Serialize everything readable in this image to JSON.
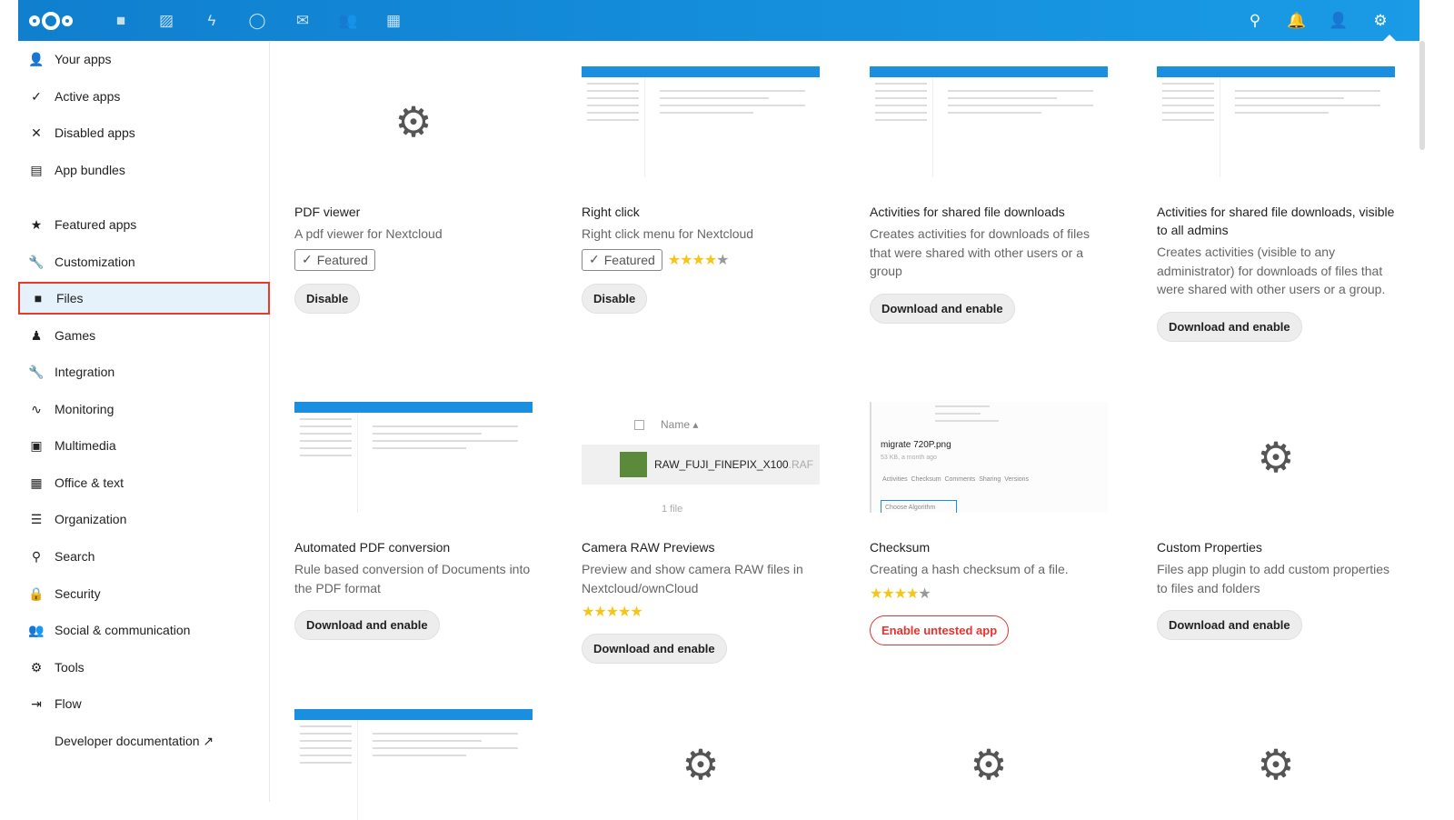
{
  "header": {
    "nav_icons": [
      "files-icon",
      "photos-icon",
      "activity-icon",
      "search-talk-icon",
      "mail-icon",
      "contacts-icon",
      "calendar-icon"
    ],
    "right_icons": [
      "search-icon",
      "notifications-icon",
      "contacts-menu-icon",
      "settings-icon"
    ],
    "color": "#0f7fce"
  },
  "sidebar": {
    "items": [
      {
        "label": "Your apps",
        "icon": "user-icon",
        "glyph": "👤"
      },
      {
        "label": "Active apps",
        "icon": "check-icon",
        "glyph": "✓"
      },
      {
        "label": "Disabled apps",
        "icon": "close-icon",
        "glyph": "✕"
      },
      {
        "label": "App bundles",
        "icon": "archive-icon",
        "glyph": "▤"
      },
      {
        "label": "Featured apps",
        "icon": "star-icon",
        "glyph": "★"
      },
      {
        "label": "Customization",
        "icon": "wrench-icon",
        "glyph": "🔧"
      },
      {
        "label": "Files",
        "icon": "folder-icon",
        "glyph": "■"
      },
      {
        "label": "Games",
        "icon": "games-icon",
        "glyph": "♟"
      },
      {
        "label": "Integration",
        "icon": "wrench-icon",
        "glyph": "🔧"
      },
      {
        "label": "Monitoring",
        "icon": "pulse-icon",
        "glyph": "∿"
      },
      {
        "label": "Multimedia",
        "icon": "image-icon",
        "glyph": "▣"
      },
      {
        "label": "Office & text",
        "icon": "document-icon",
        "glyph": "▦"
      },
      {
        "label": "Organization",
        "icon": "list-icon",
        "glyph": "☰"
      },
      {
        "label": "Search",
        "icon": "search-icon",
        "glyph": "⚲"
      },
      {
        "label": "Security",
        "icon": "lock-icon",
        "glyph": "🔒"
      },
      {
        "label": "Social & communication",
        "icon": "users-icon",
        "glyph": "👥"
      },
      {
        "label": "Tools",
        "icon": "gear-icon",
        "glyph": "⚙"
      },
      {
        "label": "Flow",
        "icon": "flow-icon",
        "glyph": "⇥"
      },
      {
        "label": "Developer documentation ↗",
        "icon": "",
        "glyph": ""
      }
    ],
    "active": "Files"
  },
  "apps": [
    {
      "title": "PDF viewer",
      "desc": "A pdf viewer for Nextcloud",
      "featured": "Featured",
      "rating": null,
      "button": "Disable",
      "thumb": "gear"
    },
    {
      "title": "Right click",
      "desc": "Right click menu for Nextcloud",
      "featured": "Featured",
      "rating": 4.5,
      "button": "Disable",
      "thumb": "shot"
    },
    {
      "title": "Activities for shared file downloads",
      "desc": "Creates activities for downloads of files that were shared with other users or a group",
      "featured": null,
      "rating": null,
      "button": "Download and enable",
      "thumb": "shot"
    },
    {
      "title": "Activities for shared file downloads, visible to all admins",
      "desc": "Creates activities (visible to any administrator) for downloads of files that were shared with other users or a group.",
      "featured": null,
      "rating": null,
      "button": "Download and enable",
      "thumb": "shot"
    },
    {
      "title": "Automated PDF conversion",
      "desc": "Rule based conversion of Documents into the PDF format",
      "featured": null,
      "rating": null,
      "button": "Download and enable",
      "thumb": "shot"
    },
    {
      "title": "Camera RAW Previews",
      "desc": "Preview and show camera RAW files in Nextcloud/ownCloud",
      "featured": null,
      "rating": 5,
      "button": "Download and enable",
      "thumb": "raw",
      "thumb_text": {
        "col": "Name",
        "file": "RAW_FUJI_FINEPIX_X100",
        "ext": ".RAF",
        "count": "1 file"
      }
    },
    {
      "title": "Checksum",
      "desc": "Creating a hash checksum of a file.",
      "featured": null,
      "rating": 4.5,
      "button": "Enable untested app",
      "untested": true,
      "thumb": "checksum",
      "thumb_text": {
        "file": "migrate 720P.png",
        "meta": "53 KB, a month ago",
        "tabs": "Activities  Checksum  Comments  Sharing  Versions",
        "select": "Choose Algorithm"
      }
    },
    {
      "title": "Custom Properties",
      "desc": "Files app plugin to add custom properties to files and folders",
      "featured": null,
      "rating": null,
      "button": "Download and enable",
      "thumb": "gear"
    },
    {
      "title": "",
      "desc": "",
      "thumb": "shot"
    },
    {
      "title": "",
      "desc": "",
      "thumb": "gear"
    },
    {
      "title": "",
      "desc": "",
      "thumb": "gear"
    },
    {
      "title": "",
      "desc": "",
      "thumb": "gear"
    }
  ]
}
